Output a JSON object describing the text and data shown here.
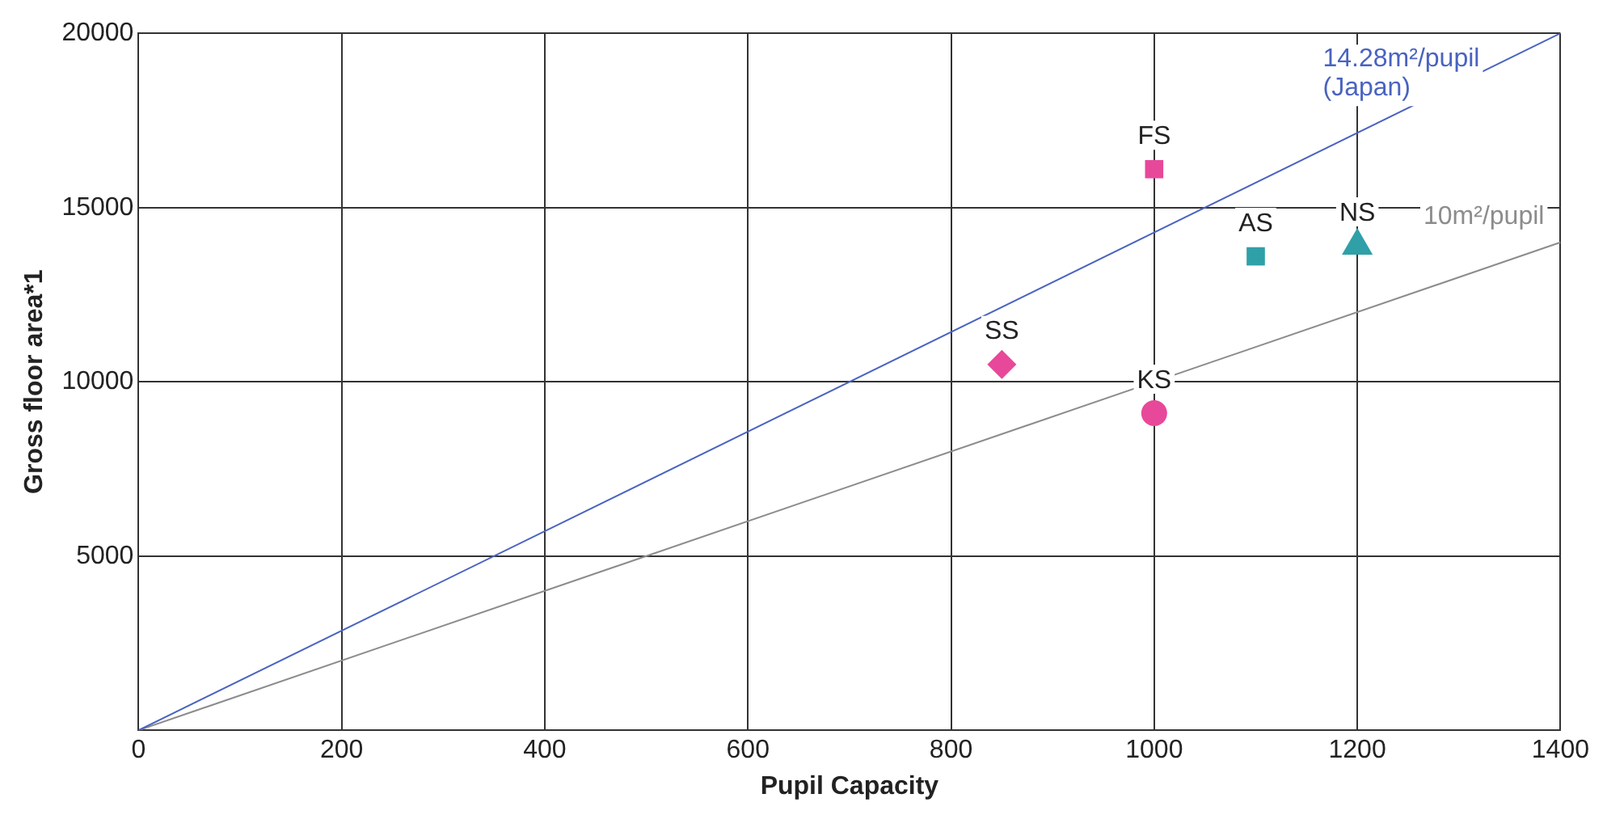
{
  "chart_data": {
    "type": "scatter",
    "xlabel": "Pupil Capacity",
    "ylabel": "Gross floor area*1",
    "xlim": [
      0,
      1400
    ],
    "xticks": [
      0,
      200,
      400,
      600,
      800,
      1000,
      1200,
      1400
    ],
    "ylim": [
      0,
      20000
    ],
    "yticks": [
      5000,
      10000,
      15000,
      20000
    ],
    "grid": true,
    "legend": false,
    "series": [
      {
        "name": "14.28m²/pupil (Japan)",
        "type": "line",
        "color": "#4a63c0",
        "x": [
          0,
          1400
        ],
        "values": [
          0,
          20000
        ]
      },
      {
        "name": "10m²/pupil",
        "type": "line",
        "color": "#8c8c8c",
        "x": [
          0,
          1400
        ],
        "values": [
          0,
          14000
        ]
      },
      {
        "name": "FS",
        "color": "#e8489a",
        "marker": "square",
        "x": [
          1000
        ],
        "values": [
          16100
        ]
      },
      {
        "name": "AS",
        "color": "#2fa0a8",
        "marker": "square",
        "x": [
          1100
        ],
        "values": [
          13600
        ]
      },
      {
        "name": "NS",
        "color": "#2fa0a8",
        "marker": "triangle",
        "x": [
          1200
        ],
        "values": [
          13900
        ]
      },
      {
        "name": "SS",
        "color": "#e8489a",
        "marker": "diamond",
        "x": [
          850
        ],
        "values": [
          10500
        ]
      },
      {
        "name": "KS",
        "color": "#e8489a",
        "marker": "circle",
        "x": [
          1000
        ],
        "values": [
          9100
        ]
      }
    ]
  }
}
